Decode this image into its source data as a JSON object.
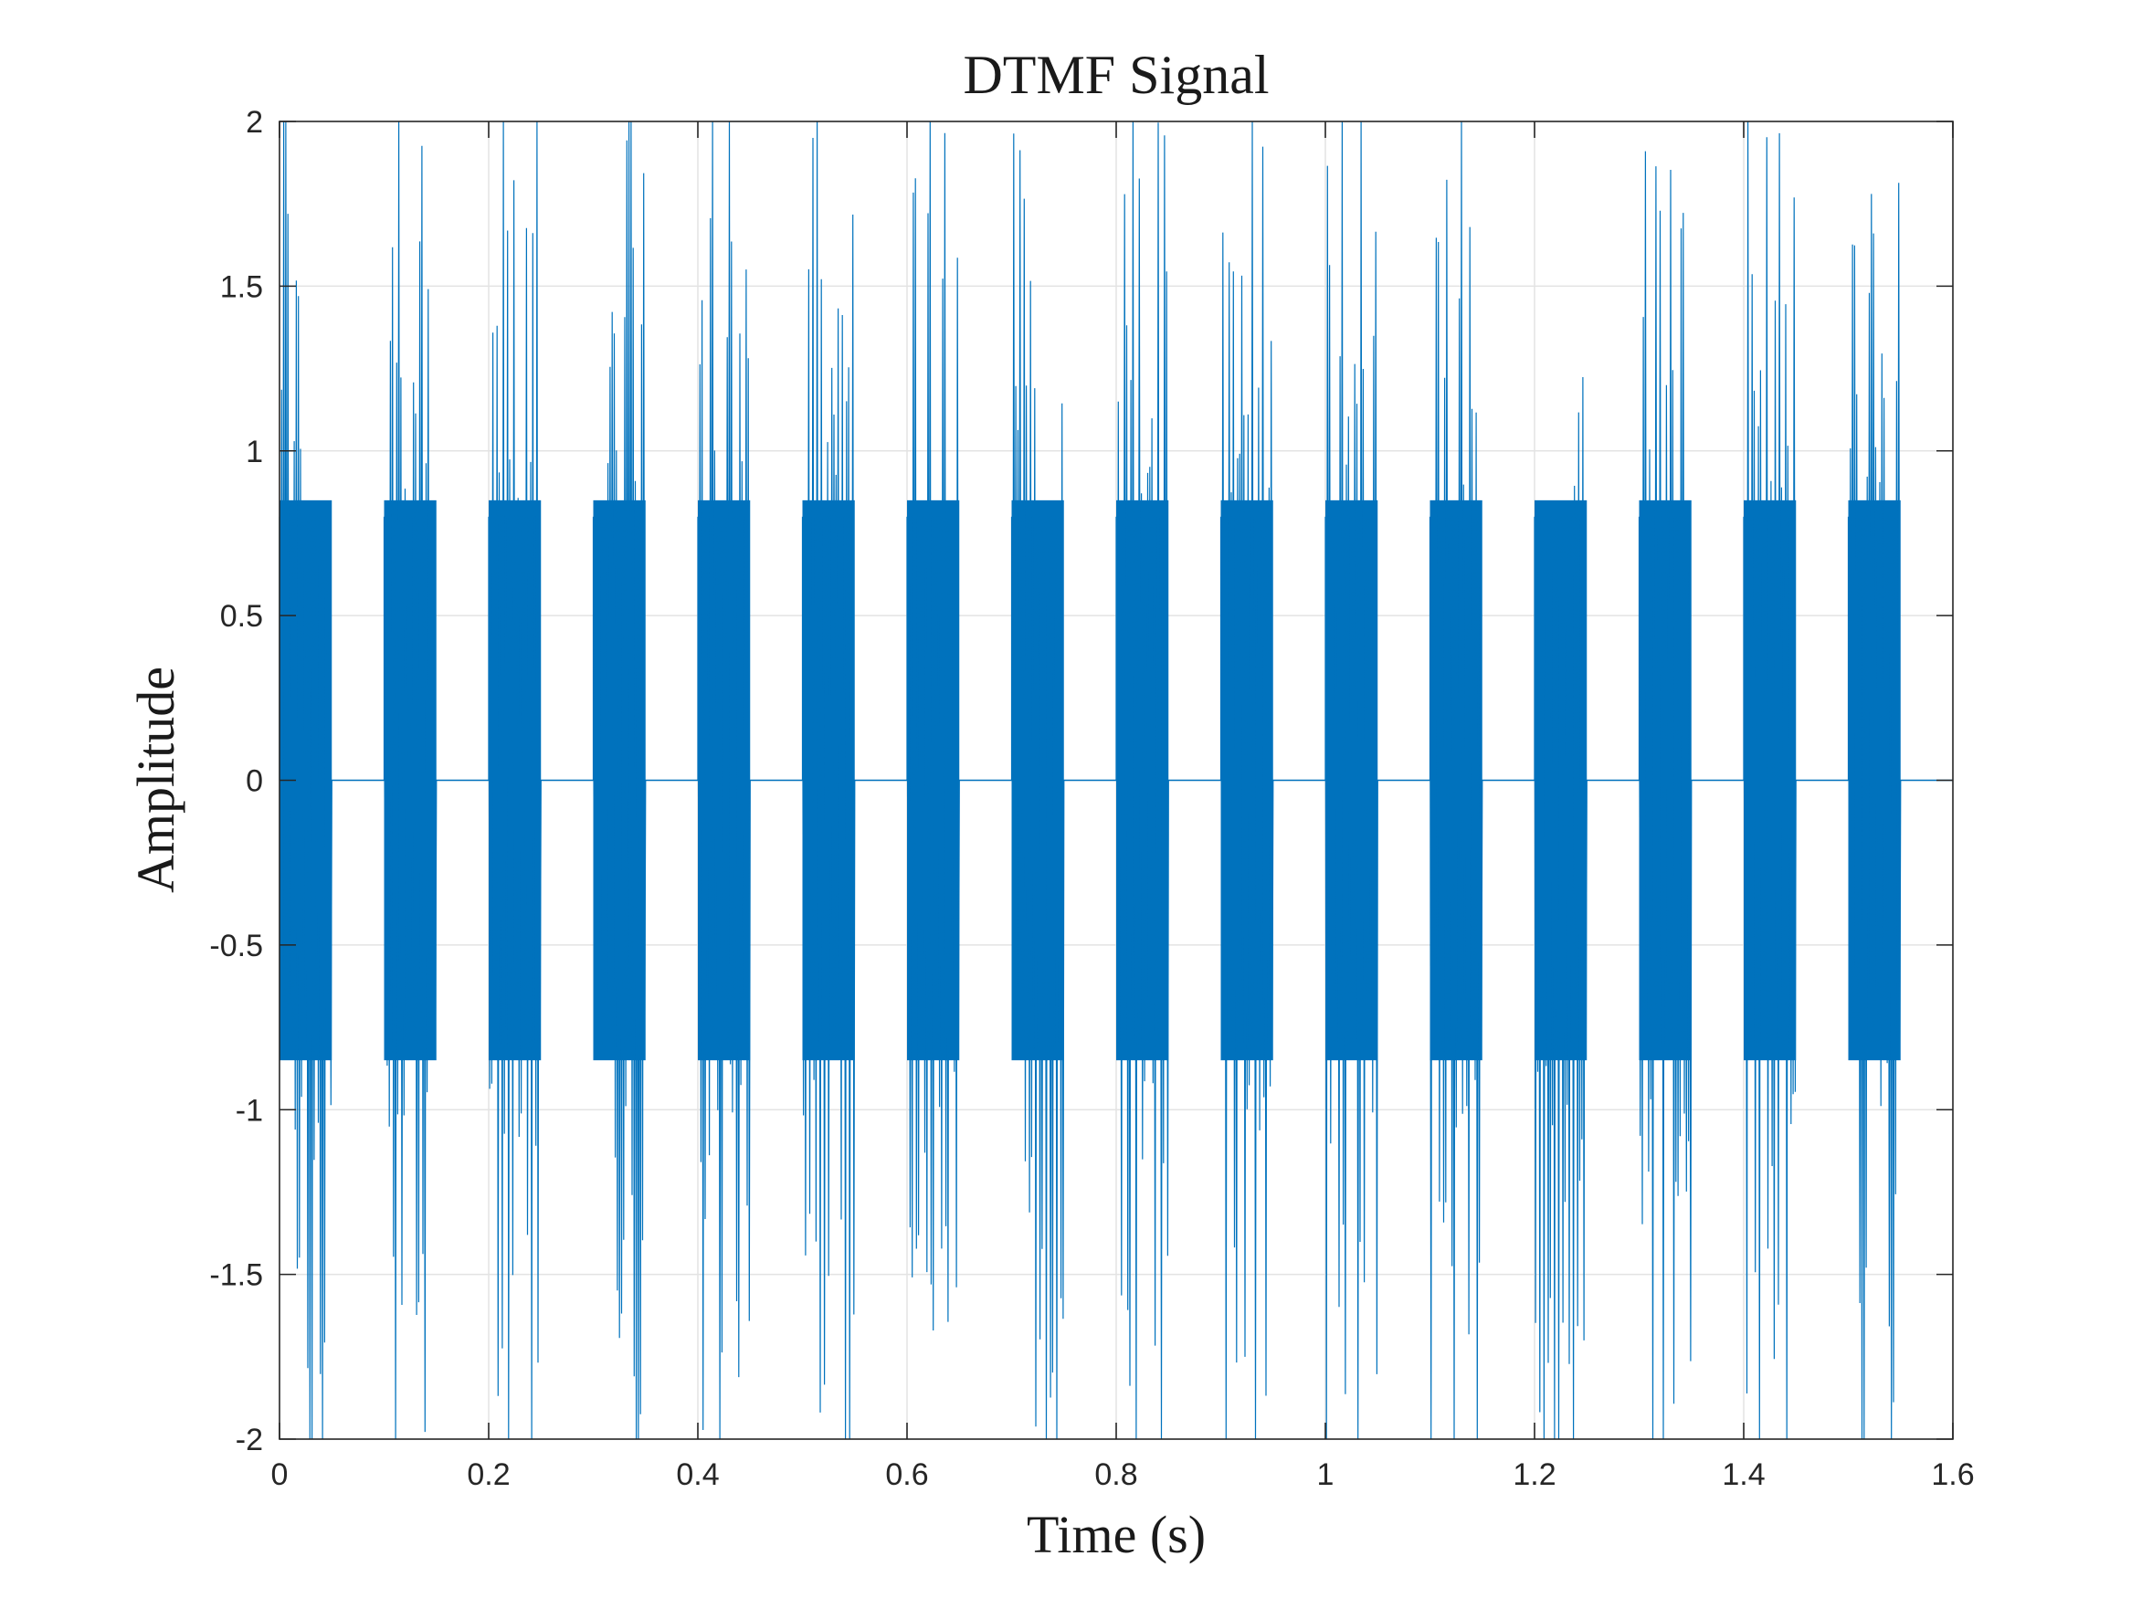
{
  "chart_data": {
    "type": "line",
    "title": "DTMF Signal",
    "xlabel": "Time (s)",
    "ylabel": "Amplitude",
    "xlim": [
      0,
      1.6
    ],
    "ylim": [
      -2,
      2
    ],
    "xticks": [
      0,
      0.2,
      0.4,
      0.6,
      0.8,
      1,
      1.2,
      1.4,
      1.6
    ],
    "xtick_labels": [
      "0",
      "0.2",
      "0.4",
      "0.6",
      "0.8",
      "1",
      "1.2",
      "1.4",
      "1.6"
    ],
    "yticks": [
      -2,
      -1.5,
      -1,
      -0.5,
      0,
      0.5,
      1,
      1.5,
      2
    ],
    "ytick_labels": [
      "-2",
      "-1.5",
      "-1",
      "-0.5",
      "0",
      "0.5",
      "1",
      "1.5",
      "2"
    ],
    "grid": true,
    "line_color": "#0072BD",
    "series": [
      {
        "tone_duration_s": 0.05,
        "tone_starts_s": [
          0,
          0.1,
          0.2,
          0.3,
          0.4,
          0.5,
          0.6,
          0.7,
          0.8,
          0.9,
          1.0,
          1.1,
          1.2,
          1.3,
          1.4,
          1.5
        ],
        "silence_value": 0,
        "signal_end_s": 1.6,
        "peak_amplitude": 2
      }
    ]
  }
}
